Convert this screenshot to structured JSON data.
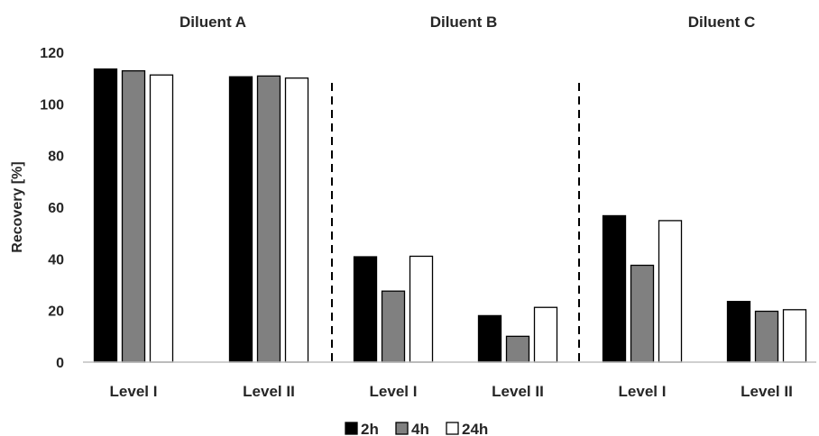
{
  "chart_data": {
    "type": "bar",
    "ylabel": "Recovery [%]",
    "ylim": [
      0,
      120
    ],
    "yticks": [
      0,
      20,
      40,
      60,
      80,
      100,
      120
    ],
    "grid": false,
    "legend_position": "bottom-center",
    "groups": [
      {
        "title": "Diluent A",
        "categories": [
          "Level I",
          "Level II"
        ]
      },
      {
        "title": "Diluent B",
        "categories": [
          "Level I",
          "Level II"
        ]
      },
      {
        "title": "Diluent C",
        "categories": [
          "Level I",
          "Level II"
        ]
      }
    ],
    "series": [
      {
        "name": "2h",
        "color": "#000000",
        "values": [
          113.5,
          110.5,
          40.8,
          18.0,
          56.7,
          23.5
        ]
      },
      {
        "name": "4h",
        "color": "#808080",
        "values": [
          112.8,
          110.8,
          27.5,
          10.0,
          37.5,
          19.7
        ]
      },
      {
        "name": "24h",
        "color": "#ffffff",
        "values": [
          111.2,
          110.0,
          41.0,
          21.2,
          54.8,
          20.3
        ]
      }
    ]
  }
}
